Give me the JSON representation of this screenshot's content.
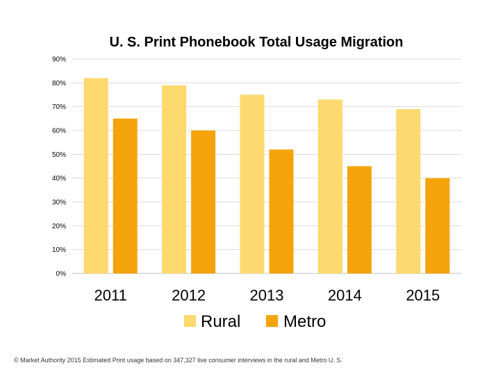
{
  "chart_data": {
    "type": "bar",
    "title": "U. S. Print Phonebook Total Usage Migration",
    "categories": [
      "2011",
      "2012",
      "2013",
      "2014",
      "2015"
    ],
    "series": [
      {
        "name": "Rural",
        "values": [
          82,
          79,
          75,
          73,
          69
        ],
        "color": "#fdd96f"
      },
      {
        "name": "Metro",
        "values": [
          65,
          60,
          52,
          45,
          40
        ],
        "color": "#f5a30a"
      }
    ],
    "ylim": [
      0,
      90
    ],
    "yticks": [
      "0%",
      "10%",
      "20%",
      "30%",
      "40%",
      "50%",
      "60%",
      "70%",
      "80%",
      "90%"
    ],
    "grid": true,
    "legend": "bottom"
  },
  "footnote": "© Market Authority 2015 Estimated Print usage based on 347,327 live consumer interviews in the rural and Metro U. S."
}
